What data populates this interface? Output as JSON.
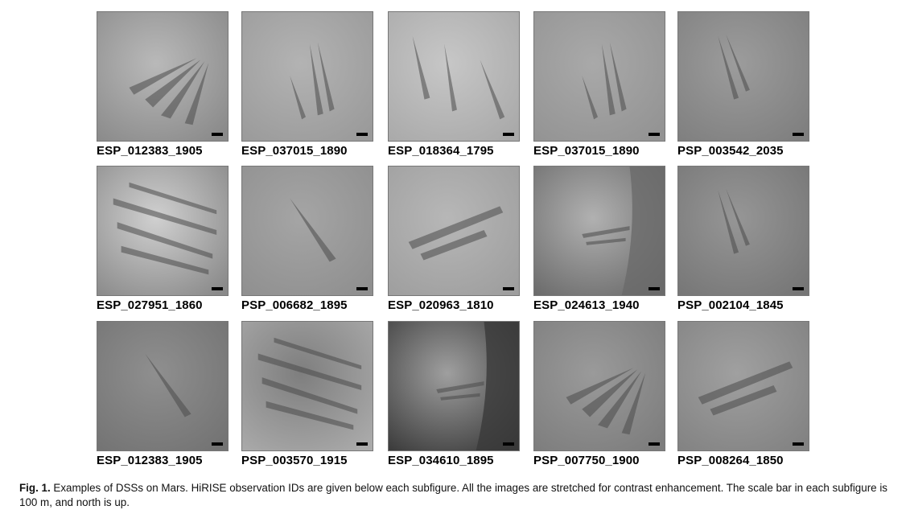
{
  "figure": {
    "rows": [
      [
        {
          "id": "ESP_012383_1905",
          "tone": "#b9b9b9",
          "alt": "#8a8a8a",
          "streaks": "fan"
        },
        {
          "id": "ESP_037015_1890",
          "tone": "#b3b3b3",
          "alt": "#9a9a9a",
          "streaks": "tall"
        },
        {
          "id": "ESP_018364_1795",
          "tone": "#c7c7c7",
          "alt": "#a9a9a9",
          "streaks": "three"
        },
        {
          "id": "ESP_037015_1890",
          "tone": "#a9a9a9",
          "alt": "#939393",
          "streaks": "tall"
        },
        {
          "id": "PSP_003542_2035",
          "tone": "#9c9c9c",
          "alt": "#7f7f7f",
          "streaks": "rough"
        }
      ],
      [
        {
          "id": "ESP_027951_1860",
          "tone": "#d0d0d0",
          "alt": "#8a8a8a",
          "streaks": "many"
        },
        {
          "id": "PSP_006682_1895",
          "tone": "#a5a5a5",
          "alt": "#8f8f8f",
          "streaks": "one"
        },
        {
          "id": "ESP_020963_1810",
          "tone": "#b7b7b7",
          "alt": "#9e9e9e",
          "streaks": "wide"
        },
        {
          "id": "ESP_024613_1940",
          "tone": "#b1b1b1",
          "alt": "#6a6a6a",
          "streaks": "cliff"
        },
        {
          "id": "PSP_002104_1845",
          "tone": "#969696",
          "alt": "#767676",
          "streaks": "rough"
        }
      ],
      [
        {
          "id": "ESP_012383_1905",
          "tone": "#8f8f8f",
          "alt": "#737373",
          "streaks": "one"
        },
        {
          "id": "PSP_003570_1915",
          "tone": "#7e7e7e",
          "alt": "#aaaaaa",
          "streaks": "many"
        },
        {
          "id": "ESP_034610_1895",
          "tone": "#9f9f9f",
          "alt": "#3a3a3a",
          "streaks": "cliff"
        },
        {
          "id": "PSP_007750_1900",
          "tone": "#9a9a9a",
          "alt": "#7d7d7d",
          "streaks": "fan"
        },
        {
          "id": "PSP_008264_1850",
          "tone": "#a0a0a0",
          "alt": "#828282",
          "streaks": "wide"
        }
      ]
    ]
  },
  "caption": {
    "label": "Fig. 1.",
    "text": " Examples of DSSs on Mars. HiRISE observation IDs are given below each subfigure. All the images are stretched for contrast enhancement. The scale bar in each subfigure is 100 m, and north is up."
  }
}
